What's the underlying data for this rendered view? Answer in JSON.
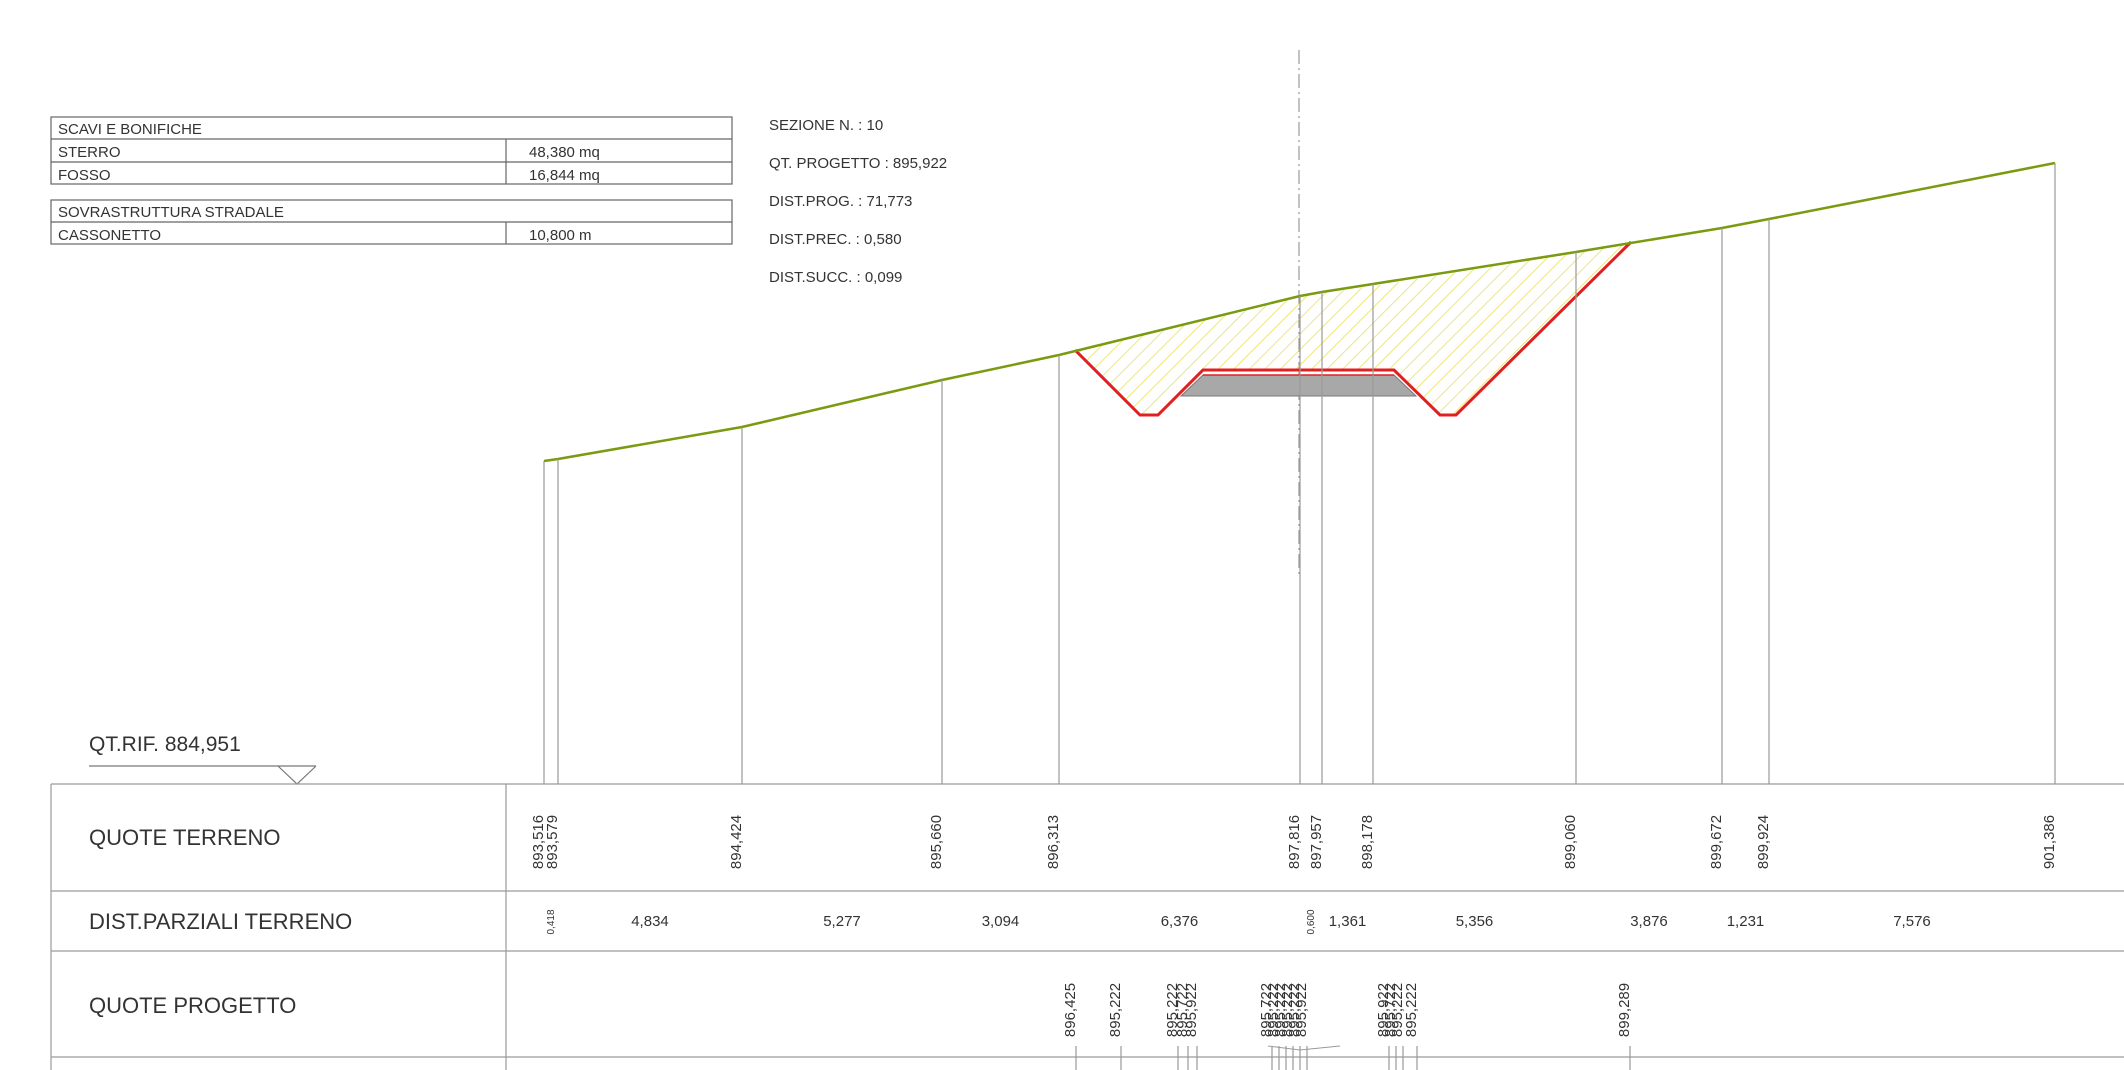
{
  "summary_tables": {
    "scavi": {
      "title": "SCAVI E BONIFICHE",
      "rows": [
        {
          "label": "STERRO",
          "value": "48,380 mq"
        },
        {
          "label": "FOSSO",
          "value": "16,844 mq"
        }
      ]
    },
    "sovrastruttura": {
      "title": "SOVRASTRUTTURA STRADALE",
      "rows": [
        {
          "label": "CASSONETTO",
          "value": "10,800 m"
        }
      ]
    }
  },
  "section_info": {
    "sezione": "SEZIONE N. : 10",
    "qt_progetto": "QT. PROGETTO : 895,922",
    "dist_prog": "DIST.PROG. : 71,773",
    "dist_prec": "DIST.PREC. : 0,580",
    "dist_succ": "DIST.SUCC. : 0,099"
  },
  "reference": "QT.RIF. 884,951",
  "rows": {
    "quote_terreno": "QUOTE TERRENO",
    "dist_parziali": "DIST.PARZIALI TERRENO",
    "quote_progetto": "QUOTE PROGETTO"
  },
  "terrain_elevations": [
    "893,516",
    "893,579",
    "894,424",
    "895,660",
    "896,313",
    "897,816",
    "897,957",
    "898,178",
    "899,060",
    "899,672",
    "899,924",
    "901,386"
  ],
  "partial_distances": [
    "0,418",
    "4,834",
    "5,277",
    "3,094",
    "6,376",
    "0,600",
    "1,361",
    "5,356",
    "3,876",
    "1,231",
    "7,576"
  ],
  "project_elevations": [
    "896,425",
    "895,222",
    "895,222",
    "895,722",
    "895,922",
    "895,722",
    "895,222",
    "895,222",
    "895,222",
    "895,222",
    "895,922",
    "895,922",
    "895,722",
    "895,222",
    "895,222",
    "899,289"
  ],
  "colors": {
    "terrain": "#7a9a10",
    "excavation_outline": "#e02020",
    "hatch": "#e8e060",
    "pavement": "#a8a8a8"
  }
}
